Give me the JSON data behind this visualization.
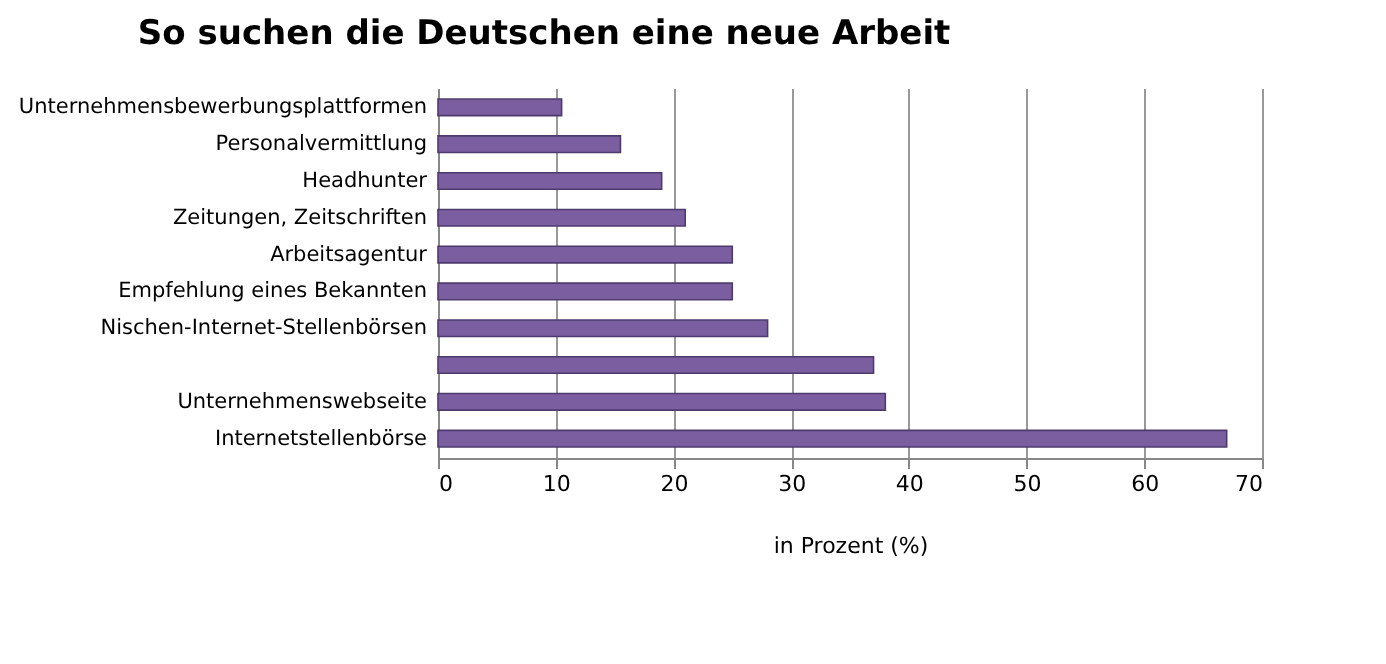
{
  "chart_data": {
    "type": "bar",
    "orientation": "horizontal",
    "title": "So suchen die Deutschen eine neue Arbeit",
    "xlabel": "in Prozent (%)",
    "categories": [
      "Unternehmensbewerbungsplattformen",
      "Personalvermittlung",
      "Headhunter",
      "Zeitungen, Zeitschriften",
      "Arbeitsagentur",
      "Empfehlung eines Bekannten",
      "Nischen-Internet-Stellenbörsen",
      null,
      "Unternehmenswebseite",
      "Internetstellenbörse"
    ],
    "values": [
      10.5,
      15.5,
      19,
      21,
      25,
      25,
      28,
      37,
      38,
      67
    ],
    "color": "#7b5ea0",
    "xlim": [
      0,
      70
    ],
    "xticks": [
      0,
      10,
      20,
      30,
      40,
      50,
      60,
      70
    ],
    "grid": "x"
  }
}
